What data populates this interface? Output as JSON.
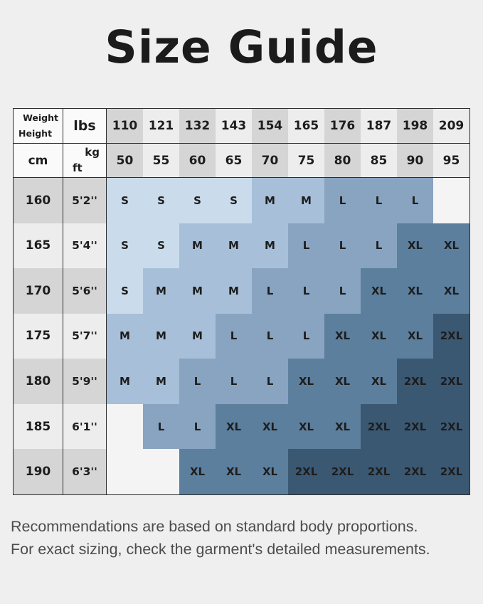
{
  "title": "Size Guide",
  "chart_data": {
    "type": "table",
    "title": "Size Guide",
    "corner_labels": {
      "top_right": "Weight",
      "bottom_left": "Height"
    },
    "units": {
      "weight_row1": "lbs",
      "weight_row2": "kg",
      "height_col1": "cm",
      "height_col2": "ft"
    },
    "weights_lbs": [
      "110",
      "121",
      "132",
      "143",
      "154",
      "165",
      "176",
      "187",
      "198",
      "209"
    ],
    "weights_kg": [
      "50",
      "55",
      "60",
      "65",
      "70",
      "75",
      "80",
      "85",
      "90",
      "95"
    ],
    "rows": [
      {
        "cm": "160",
        "ft": "5'2''",
        "sizes": [
          "S",
          "S",
          "S",
          "S",
          "M",
          "M",
          "L",
          "L",
          "L",
          ""
        ]
      },
      {
        "cm": "165",
        "ft": "5'4''",
        "sizes": [
          "S",
          "S",
          "M",
          "M",
          "M",
          "L",
          "L",
          "L",
          "XL",
          "XL"
        ]
      },
      {
        "cm": "170",
        "ft": "5'6''",
        "sizes": [
          "S",
          "M",
          "M",
          "M",
          "L",
          "L",
          "L",
          "XL",
          "XL",
          "XL"
        ]
      },
      {
        "cm": "175",
        "ft": "5'7''",
        "sizes": [
          "M",
          "M",
          "M",
          "L",
          "L",
          "L",
          "XL",
          "XL",
          "XL",
          "2XL"
        ]
      },
      {
        "cm": "180",
        "ft": "5'9''",
        "sizes": [
          "M",
          "M",
          "L",
          "L",
          "L",
          "XL",
          "XL",
          "XL",
          "2XL",
          "2XL"
        ]
      },
      {
        "cm": "185",
        "ft": "6'1''",
        "sizes": [
          "",
          "L",
          "L",
          "XL",
          "XL",
          "XL",
          "XL",
          "2XL",
          "2XL",
          "2XL"
        ]
      },
      {
        "cm": "190",
        "ft": "6'3''",
        "sizes": [
          "",
          "",
          "XL",
          "XL",
          "XL",
          "2XL",
          "2XL",
          "2XL",
          "2XL",
          "2XL"
        ]
      }
    ]
  },
  "size_colors": {
    "S": "#cadceb",
    "M": "#a7bfd8",
    "L": "#88a4c0",
    "XL": "#5d7f9e",
    "2XL": "#3b5873"
  },
  "palette": {
    "page_bg": "#efefef",
    "border": "#2d2d2d",
    "header_white": "#fafafa",
    "band_dark": "#d5d5d5",
    "band_light": "#ededed",
    "blank_cell": "#f4f4f4",
    "title_text": "#1b1b1b",
    "cell_text": "#1d1d1d",
    "footer_text": "#4c4c4c"
  },
  "footer": {
    "line1": "Recommendations are based on standard body proportions.",
    "line2": "For exact sizing, check the garment's detailed measurements."
  }
}
